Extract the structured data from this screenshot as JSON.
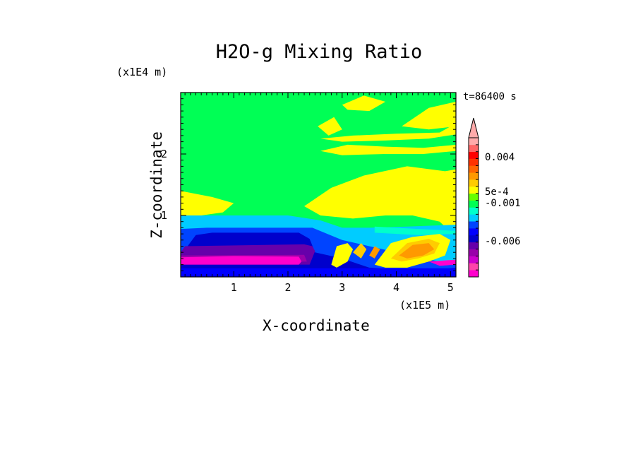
{
  "chart_data": {
    "type": "heatmap",
    "title": "H2O-g Mixing Ratio",
    "xlabel": "X-coordinate",
    "ylabel": "Z-coordinate",
    "x_unit": "(x1E5 m)",
    "z_unit": "(x1E4 m)",
    "time_label": "t=86400 s",
    "x_ticks": [
      "1",
      "2",
      "3",
      "4",
      "5"
    ],
    "x_tick_values": [
      1,
      2,
      3,
      4,
      5
    ],
    "z_ticks": [
      "1",
      "2"
    ],
    "z_tick_values": [
      1,
      2
    ],
    "xlim": [
      0.02,
      5.1
    ],
    "zlim": [
      0,
      3
    ],
    "colorbar": {
      "colors": [
        "#ff00cc",
        "#ff44aa",
        "#cc00cc",
        "#9900aa",
        "#6600aa",
        "#0000cc",
        "#0000ff",
        "#0044ff",
        "#00ccff",
        "#00ffcc",
        "#00ff55",
        "#66ff00",
        "#ffff00",
        "#ffcc00",
        "#ff9900",
        "#ff6600",
        "#ff3300",
        "#ff0000",
        "#ff6666",
        "#ffaaaa"
      ],
      "labels": [
        "0.004",
        "5e-4",
        "-0.001",
        "-0.006"
      ],
      "label_levels": [
        17.2,
        12.2,
        10.6,
        5.1
      ]
    },
    "regions": [
      {
        "color": "#00ff55",
        "points": [
          [
            0.02,
            0
          ],
          [
            5.1,
            0
          ],
          [
            5.1,
            3
          ],
          [
            0.02,
            3
          ]
        ]
      },
      {
        "color": "#ffff00",
        "points": [
          [
            0.02,
            0.9
          ],
          [
            0.02,
            1.4
          ],
          [
            0.6,
            1.3
          ],
          [
            1.0,
            1.2
          ],
          [
            0.8,
            1.05
          ],
          [
            0.4,
            1.0
          ],
          [
            0.02,
            0.9
          ]
        ]
      },
      {
        "color": "#ffff00",
        "points": [
          [
            2.3,
            1.15
          ],
          [
            2.8,
            1.45
          ],
          [
            3.4,
            1.65
          ],
          [
            4.2,
            1.8
          ],
          [
            4.9,
            1.72
          ],
          [
            5.1,
            1.75
          ],
          [
            5.1,
            0.65
          ],
          [
            4.8,
            0.9
          ],
          [
            4.3,
            1.0
          ],
          [
            3.8,
            1.0
          ],
          [
            3.2,
            0.95
          ],
          [
            2.6,
            1.0
          ],
          [
            2.3,
            1.15
          ]
        ]
      },
      {
        "color": "#ffff00",
        "points": [
          [
            2.6,
            2.05
          ],
          [
            3.1,
            2.15
          ],
          [
            3.8,
            2.12
          ],
          [
            4.5,
            2.1
          ],
          [
            5.1,
            2.15
          ],
          [
            5.1,
            2.05
          ],
          [
            4.5,
            2.0
          ],
          [
            3.8,
            2.0
          ],
          [
            3.0,
            1.98
          ],
          [
            2.6,
            2.05
          ]
        ]
      },
      {
        "color": "#ffff00",
        "points": [
          [
            2.6,
            2.25
          ],
          [
            3.2,
            2.3
          ],
          [
            4.0,
            2.33
          ],
          [
            4.8,
            2.35
          ],
          [
            5.1,
            2.5
          ],
          [
            5.1,
            2.32
          ],
          [
            4.6,
            2.25
          ],
          [
            3.8,
            2.22
          ],
          [
            3.0,
            2.2
          ],
          [
            2.6,
            2.25
          ]
        ]
      },
      {
        "color": "#ffff00",
        "points": [
          [
            3.0,
            2.8
          ],
          [
            3.4,
            2.95
          ],
          [
            3.8,
            2.85
          ],
          [
            3.5,
            2.7
          ],
          [
            3.1,
            2.72
          ],
          [
            3.0,
            2.8
          ]
        ]
      },
      {
        "color": "#ffff00",
        "points": [
          [
            4.1,
            2.45
          ],
          [
            4.6,
            2.75
          ],
          [
            5.1,
            2.85
          ],
          [
            5.1,
            2.45
          ],
          [
            4.6,
            2.4
          ],
          [
            4.1,
            2.45
          ]
        ]
      },
      {
        "color": "#ffff00",
        "points": [
          [
            2.55,
            2.45
          ],
          [
            2.85,
            2.6
          ],
          [
            3.0,
            2.4
          ],
          [
            2.75,
            2.3
          ],
          [
            2.55,
            2.45
          ]
        ]
      },
      {
        "color": "#00ccff",
        "points": [
          [
            0.02,
            0
          ],
          [
            0.02,
            1.0
          ],
          [
            0.5,
            1.0
          ],
          [
            2.0,
            1.0
          ],
          [
            2.6,
            0.92
          ],
          [
            3.0,
            0.8
          ],
          [
            3.5,
            0.8
          ],
          [
            4.2,
            0.82
          ],
          [
            5.1,
            0.85
          ],
          [
            5.1,
            0
          ],
          [
            0.02,
            0
          ]
        ]
      },
      {
        "color": "#00ffcc",
        "points": [
          [
            3.6,
            0.82
          ],
          [
            4.4,
            0.78
          ],
          [
            5.1,
            0.75
          ],
          [
            5.1,
            0.7
          ],
          [
            4.4,
            0.68
          ],
          [
            3.6,
            0.72
          ],
          [
            3.6,
            0.82
          ]
        ]
      },
      {
        "color": "#0044ff",
        "points": [
          [
            0.02,
            0
          ],
          [
            0.02,
            0.78
          ],
          [
            0.5,
            0.8
          ],
          [
            1.5,
            0.8
          ],
          [
            2.45,
            0.8
          ],
          [
            3.0,
            0.6
          ],
          [
            3.5,
            0.5
          ],
          [
            4.5,
            0.3
          ],
          [
            5.1,
            0.2
          ],
          [
            5.1,
            0
          ],
          [
            0.02,
            0
          ]
        ]
      },
      {
        "color": "#0000cc",
        "points": [
          [
            0.02,
            0.35
          ],
          [
            0.3,
            0.68
          ],
          [
            0.6,
            0.72
          ],
          [
            1.6,
            0.72
          ],
          [
            2.2,
            0.72
          ],
          [
            2.4,
            0.62
          ],
          [
            2.5,
            0.4
          ],
          [
            3.0,
            0.3
          ],
          [
            3.5,
            0.15
          ],
          [
            4.5,
            0.1
          ],
          [
            5.1,
            0.15
          ],
          [
            5.1,
            0
          ],
          [
            0.02,
            0
          ],
          [
            0.02,
            0.35
          ]
        ]
      },
      {
        "color": "#6600aa",
        "points": [
          [
            0.02,
            0.4
          ],
          [
            0.1,
            0.5
          ],
          [
            2.3,
            0.53
          ],
          [
            2.45,
            0.5
          ],
          [
            2.5,
            0.42
          ],
          [
            2.4,
            0.2
          ],
          [
            0.02,
            0.2
          ],
          [
            0.02,
            0.4
          ]
        ]
      },
      {
        "color": "#9900aa",
        "points": [
          [
            0.02,
            0.35
          ],
          [
            2.3,
            0.36
          ],
          [
            2.35,
            0.25
          ],
          [
            0.02,
            0.2
          ]
        ]
      },
      {
        "color": "#ff00cc",
        "points": [
          [
            0.02,
            0.32
          ],
          [
            1.0,
            0.34
          ],
          [
            2.2,
            0.33
          ],
          [
            2.25,
            0.25
          ],
          [
            2.2,
            0.2
          ],
          [
            0.02,
            0.2
          ]
        ]
      },
      {
        "color": "#0000ff",
        "points": [
          [
            0.02,
            0
          ],
          [
            5.1,
            0
          ],
          [
            5.1,
            0.14
          ],
          [
            0.02,
            0.14
          ]
        ]
      },
      {
        "color": "#ffff00",
        "points": [
          [
            2.8,
            0.2
          ],
          [
            2.9,
            0.5
          ],
          [
            3.1,
            0.55
          ],
          [
            3.2,
            0.45
          ],
          [
            3.1,
            0.25
          ],
          [
            2.9,
            0.15
          ],
          [
            2.8,
            0.2
          ]
        ]
      },
      {
        "color": "#ffff00",
        "points": [
          [
            3.6,
            0.2
          ],
          [
            3.9,
            0.55
          ],
          [
            4.3,
            0.65
          ],
          [
            4.8,
            0.7
          ],
          [
            5.0,
            0.6
          ],
          [
            4.9,
            0.35
          ],
          [
            4.6,
            0.25
          ],
          [
            4.2,
            0.15
          ],
          [
            3.8,
            0.15
          ],
          [
            3.6,
            0.2
          ]
        ]
      },
      {
        "color": "#ffcc00",
        "points": [
          [
            3.9,
            0.3
          ],
          [
            4.2,
            0.55
          ],
          [
            4.6,
            0.62
          ],
          [
            4.8,
            0.55
          ],
          [
            4.7,
            0.38
          ],
          [
            4.4,
            0.3
          ],
          [
            4.1,
            0.25
          ],
          [
            3.9,
            0.3
          ]
        ]
      },
      {
        "color": "#ff9900",
        "points": [
          [
            4.05,
            0.35
          ],
          [
            4.3,
            0.52
          ],
          [
            4.6,
            0.55
          ],
          [
            4.7,
            0.45
          ],
          [
            4.5,
            0.35
          ],
          [
            4.2,
            0.3
          ],
          [
            4.05,
            0.35
          ]
        ]
      },
      {
        "color": "#ffcc00",
        "points": [
          [
            3.2,
            0.4
          ],
          [
            3.35,
            0.55
          ],
          [
            3.45,
            0.45
          ],
          [
            3.35,
            0.3
          ],
          [
            3.2,
            0.4
          ]
        ]
      },
      {
        "color": "#ff9900",
        "points": [
          [
            3.5,
            0.35
          ],
          [
            3.6,
            0.5
          ],
          [
            3.7,
            0.45
          ],
          [
            3.6,
            0.3
          ],
          [
            3.5,
            0.35
          ]
        ]
      },
      {
        "color": "#ff00cc",
        "points": [
          [
            4.6,
            0.25
          ],
          [
            5.1,
            0.28
          ],
          [
            5.1,
            0.2
          ],
          [
            4.8,
            0.18
          ],
          [
            4.6,
            0.25
          ]
        ]
      }
    ]
  }
}
